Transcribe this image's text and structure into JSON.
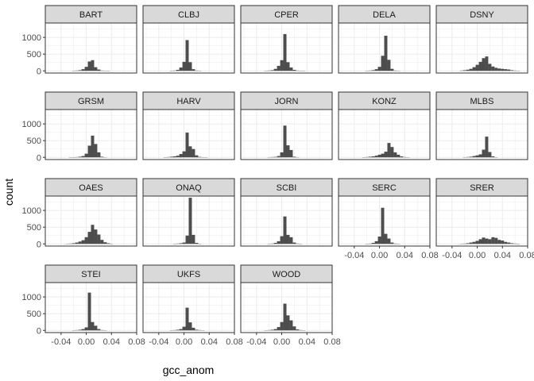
{
  "chart_data": {
    "type": "bar",
    "subtype": "faceted-histogram",
    "xlabel": "gcc_anom",
    "ylabel": "count",
    "xlim": [
      -0.065,
      0.08
    ],
    "ylim": [
      -65,
      1430
    ],
    "x_ticks": [
      -0.04,
      0.0,
      0.04,
      0.08
    ],
    "x_tick_labels": [
      "-0.04",
      "0.00",
      "0.04",
      "0.08"
    ],
    "y_ticks": [
      0,
      500,
      1000
    ],
    "y_tick_labels": [
      "0",
      "500",
      "1000"
    ],
    "bin_width": 0.005,
    "bin_centers": [
      -0.065,
      -0.06,
      -0.055,
      -0.05,
      -0.045,
      -0.04,
      -0.035,
      -0.03,
      -0.025,
      -0.02,
      -0.015,
      -0.01,
      -0.005,
      0.0,
      0.005,
      0.01,
      0.015,
      0.02,
      0.025,
      0.03,
      0.035,
      0.04,
      0.045,
      0.05,
      0.055,
      0.06,
      0.065,
      0.07,
      0.075
    ],
    "grid": true,
    "facet_columns": 5,
    "bar_color": "#4d4d4d",
    "strip_color": "#d9d9d9",
    "panel_border_color": "#333333",
    "grid_major_color": "#ebebeb",
    "series": [
      {
        "name": "BART",
        "values": [
          0,
          0,
          0,
          0,
          0,
          0,
          0,
          0,
          0,
          5,
          10,
          20,
          50,
          120,
          280,
          320,
          110,
          40,
          10,
          5,
          2,
          0,
          0,
          0,
          0,
          0,
          0,
          0,
          0
        ]
      },
      {
        "name": "CLBJ",
        "values": [
          0,
          0,
          0,
          0,
          0,
          0,
          0,
          0,
          0,
          5,
          10,
          30,
          100,
          270,
          920,
          260,
          50,
          10,
          5,
          0,
          0,
          0,
          0,
          0,
          0,
          0,
          0,
          0,
          0
        ]
      },
      {
        "name": "CPER",
        "values": [
          0,
          0,
          0,
          0,
          0,
          0,
          0,
          0,
          5,
          10,
          20,
          60,
          150,
          320,
          1100,
          260,
          100,
          30,
          10,
          5,
          2,
          0,
          0,
          0,
          0,
          0,
          0,
          0,
          0
        ]
      },
      {
        "name": "DELA",
        "values": [
          0,
          0,
          0,
          0,
          0,
          0,
          0,
          0,
          0,
          5,
          10,
          20,
          50,
          120,
          450,
          1050,
          330,
          60,
          10,
          5,
          0,
          0,
          0,
          0,
          0,
          0,
          0,
          0,
          0
        ]
      },
      {
        "name": "DSNY",
        "values": [
          0,
          0,
          0,
          0,
          0,
          0,
          0,
          0,
          10,
          20,
          35,
          60,
          110,
          180,
          270,
          380,
          430,
          210,
          130,
          90,
          70,
          60,
          50,
          40,
          20,
          10,
          5,
          0,
          0
        ]
      },
      {
        "name": "GRSM",
        "values": [
          0,
          0,
          0,
          0,
          0,
          0,
          0,
          0,
          2,
          5,
          10,
          20,
          40,
          110,
          350,
          650,
          400,
          150,
          20,
          5,
          0,
          0,
          0,
          0,
          0,
          0,
          0,
          0,
          0
        ]
      },
      {
        "name": "HARV",
        "values": [
          0,
          0,
          0,
          0,
          0,
          0,
          0,
          5,
          10,
          20,
          30,
          50,
          100,
          180,
          740,
          330,
          250,
          60,
          15,
          5,
          2,
          0,
          0,
          0,
          0,
          0,
          0,
          0,
          0
        ]
      },
      {
        "name": "JORN",
        "values": [
          0,
          0,
          0,
          0,
          0,
          0,
          0,
          0,
          0,
          5,
          10,
          15,
          40,
          150,
          950,
          360,
          220,
          20,
          5,
          0,
          0,
          0,
          0,
          0,
          0,
          0,
          0,
          0,
          0
        ]
      },
      {
        "name": "KONZ",
        "values": [
          0,
          0,
          0,
          0,
          0,
          0,
          0,
          0,
          5,
          10,
          20,
          30,
          50,
          80,
          110,
          170,
          430,
          310,
          150,
          80,
          30,
          10,
          5,
          0,
          0,
          0,
          0,
          0,
          0
        ]
      },
      {
        "name": "MLBS",
        "values": [
          0,
          0,
          0,
          0,
          0,
          0,
          0,
          0,
          0,
          5,
          10,
          20,
          40,
          60,
          90,
          230,
          620,
          160,
          30,
          5,
          0,
          0,
          0,
          0,
          0,
          0,
          0,
          0,
          0
        ]
      },
      {
        "name": "OAES",
        "values": [
          0,
          0,
          0,
          0,
          0,
          0,
          0,
          5,
          10,
          20,
          40,
          70,
          110,
          200,
          360,
          570,
          430,
          280,
          120,
          50,
          20,
          5,
          0,
          0,
          0,
          0,
          0,
          0,
          0
        ]
      },
      {
        "name": "ONAQ",
        "values": [
          0,
          0,
          0,
          0,
          0,
          0,
          0,
          0,
          0,
          0,
          5,
          10,
          20,
          40,
          250,
          1380,
          270,
          30,
          5,
          0,
          0,
          0,
          0,
          0,
          0,
          0,
          0,
          0,
          0
        ]
      },
      {
        "name": "SCBI",
        "values": [
          0,
          0,
          0,
          0,
          0,
          0,
          0,
          0,
          0,
          5,
          10,
          30,
          80,
          230,
          820,
          270,
          200,
          40,
          10,
          5,
          0,
          0,
          0,
          0,
          0,
          0,
          0,
          0,
          0
        ]
      },
      {
        "name": "SERC",
        "values": [
          0,
          0,
          0,
          0,
          0,
          0,
          0,
          0,
          0,
          5,
          10,
          30,
          80,
          220,
          1080,
          300,
          160,
          40,
          10,
          5,
          0,
          0,
          0,
          0,
          0,
          0,
          0,
          0,
          0
        ]
      },
      {
        "name": "SRER",
        "values": [
          0,
          0,
          0,
          0,
          0,
          0,
          0,
          0,
          5,
          10,
          20,
          40,
          60,
          90,
          140,
          190,
          160,
          140,
          200,
          180,
          120,
          100,
          60,
          40,
          20,
          10,
          5,
          0,
          0
        ]
      },
      {
        "name": "STEI",
        "values": [
          0,
          0,
          0,
          0,
          0,
          0,
          0,
          0,
          0,
          5,
          10,
          20,
          40,
          90,
          1130,
          250,
          140,
          40,
          10,
          5,
          0,
          0,
          0,
          0,
          0,
          0,
          0,
          0,
          0
        ]
      },
      {
        "name": "UKFS",
        "values": [
          0,
          0,
          0,
          0,
          0,
          0,
          0,
          0,
          0,
          5,
          10,
          20,
          40,
          110,
          680,
          240,
          80,
          20,
          10,
          5,
          0,
          0,
          0,
          0,
          0,
          0,
          0,
          0,
          0
        ]
      },
      {
        "name": "WOOD",
        "values": [
          0,
          0,
          0,
          0,
          0,
          0,
          0,
          0,
          5,
          10,
          20,
          40,
          100,
          250,
          800,
          450,
          300,
          120,
          30,
          10,
          5,
          0,
          0,
          0,
          0,
          0,
          0,
          0,
          0
        ]
      }
    ]
  }
}
